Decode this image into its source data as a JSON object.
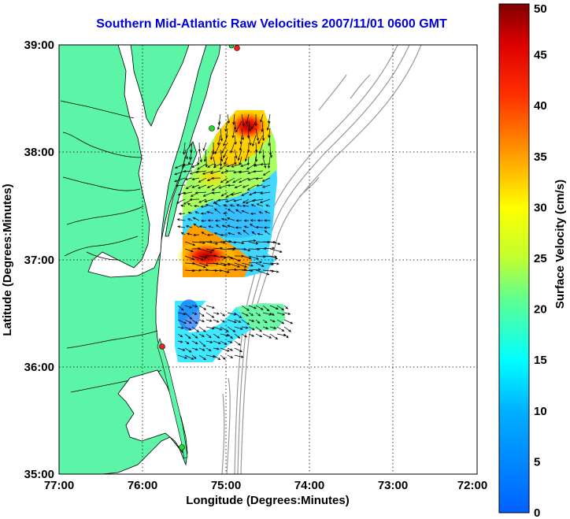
{
  "title": "Southern Mid-Atlantic Raw Velocities 2007/11/01 0600 GMT",
  "axes": {
    "xlabel": "Longitude (Degrees:Minutes)",
    "ylabel": "Latitude (Degrees:Minutes)",
    "x_ticks": [
      "77:00",
      "76:00",
      "75:00",
      "74:00",
      "73:00",
      "72:00"
    ],
    "y_ticks": [
      "39:00",
      "38:00",
      "37:00",
      "36:00",
      "35:00"
    ],
    "x_range_deg": [
      -77,
      -72
    ],
    "y_range_deg": [
      35,
      39
    ],
    "grid": "dotted"
  },
  "colorbar": {
    "label": "Surface Velocity (cm/s)",
    "ticks": [
      "50",
      "45",
      "40",
      "35",
      "30",
      "25",
      "20",
      "15",
      "10",
      "5",
      "0"
    ],
    "range": [
      0,
      50
    ],
    "colormap": "jet"
  },
  "colors": {
    "land": "#5cf5a8",
    "coast": "#000000",
    "bathymetry": "#999999",
    "title": "#0000dd",
    "site_red": "#ee2222",
    "site_green": "#22dd22"
  }
}
